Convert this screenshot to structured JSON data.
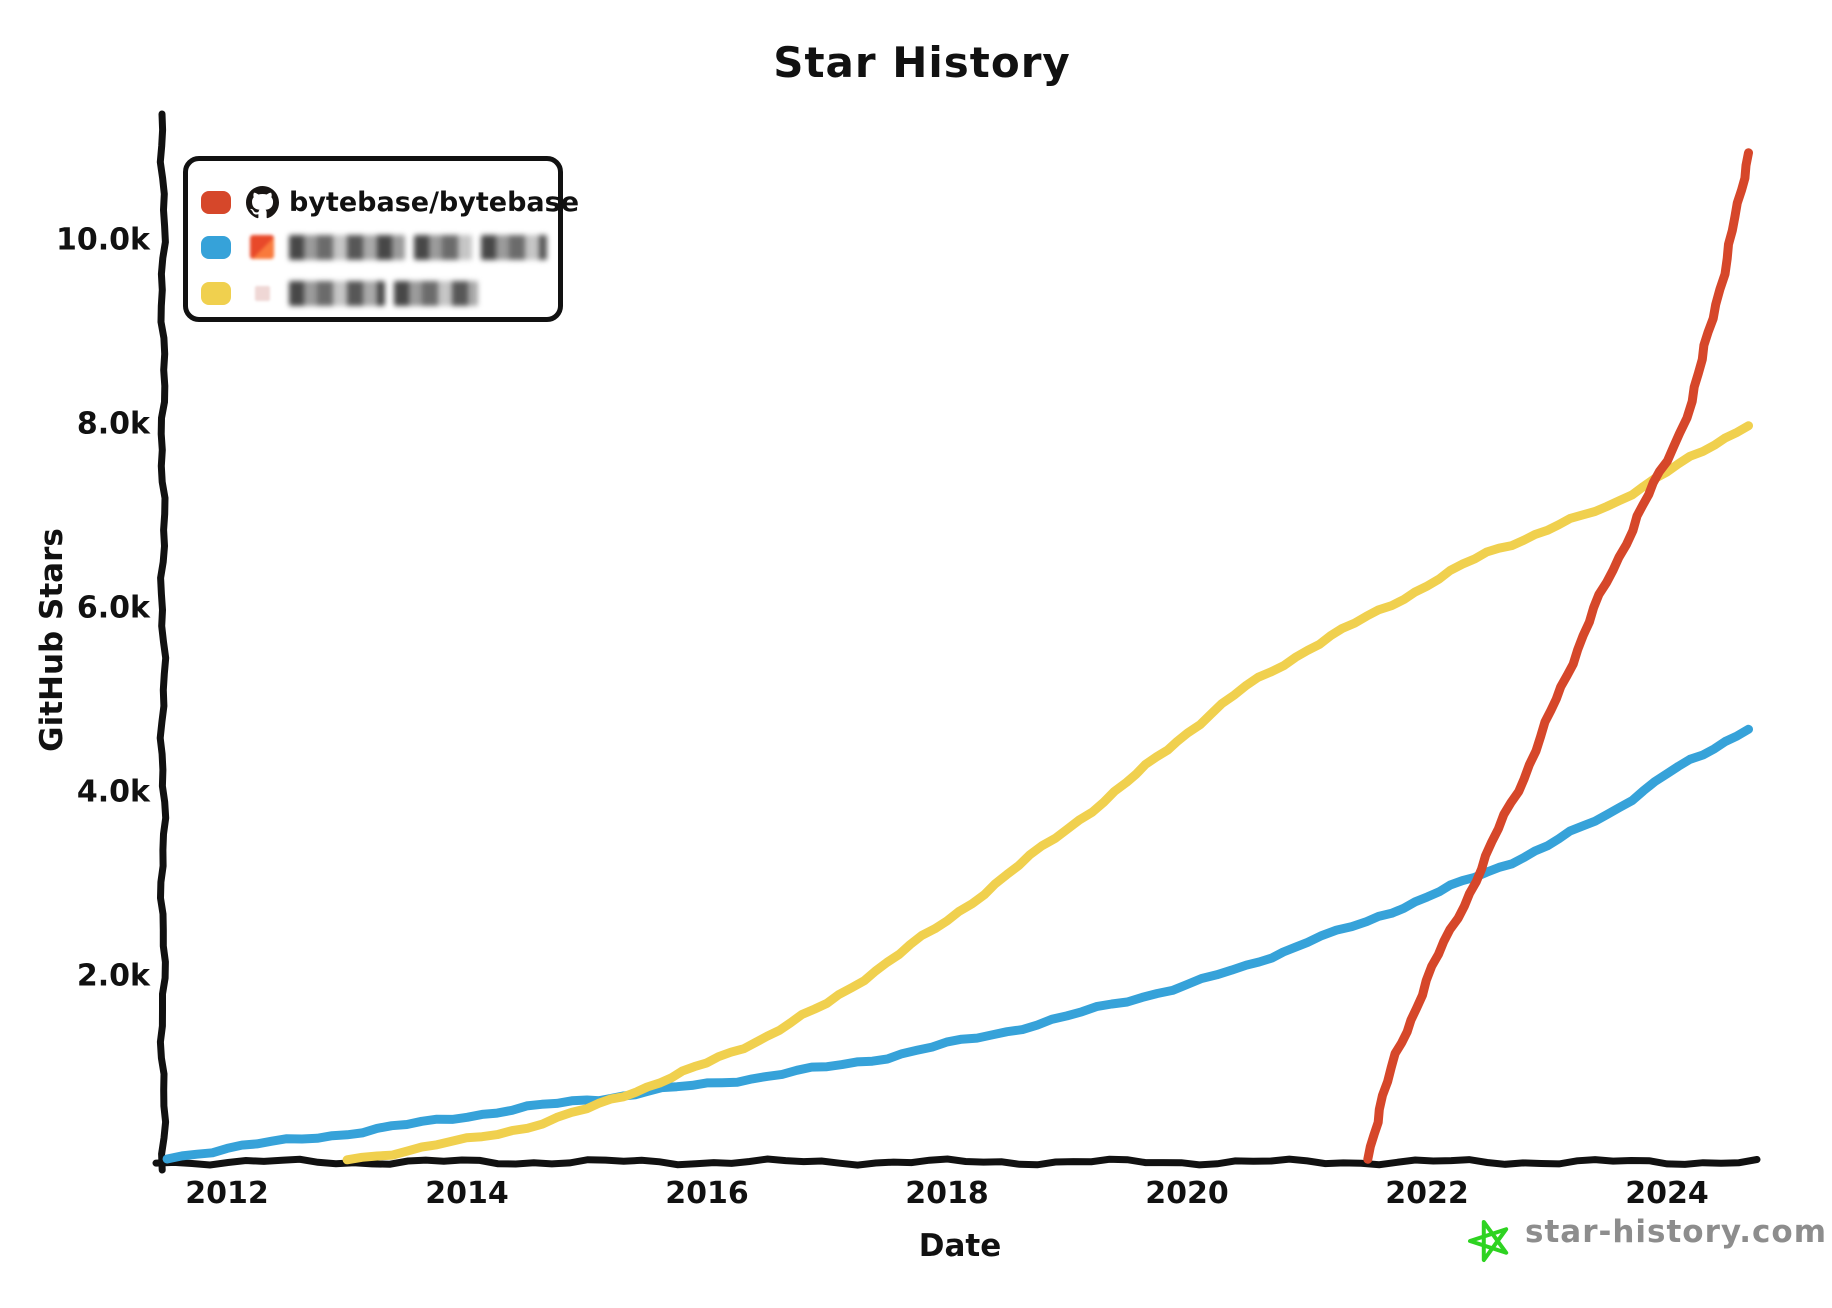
{
  "title": "Star History",
  "legend": {
    "items": [
      {
        "label": "bytebase/bytebase",
        "swatch_color": "#d6472a",
        "icon": "github-octocat-icon",
        "redacted": false
      },
      {
        "label": "",
        "swatch_color": "#36a2d9",
        "icon": "redacted-avatar-red",
        "redacted": true
      },
      {
        "label": "",
        "swatch_color": "#f0d04e",
        "icon": "redacted-avatar-pink",
        "redacted": true
      }
    ]
  },
  "watermark": {
    "text": "star-history.com",
    "text_color": "#8d8d8d",
    "star_color": "#2ed321"
  },
  "chart_data": {
    "type": "line",
    "title": "Star History",
    "xlabel": "Date",
    "ylabel": "GitHub Stars",
    "grid": false,
    "legend_position": "top-left",
    "x_axis": {
      "range": [
        2011.45,
        2024.85
      ],
      "ticks": [
        2012,
        2014,
        2016,
        2018,
        2020,
        2022,
        2024
      ],
      "tick_labels": [
        "2012",
        "2014",
        "2016",
        "2018",
        "2020",
        "2022",
        "2024"
      ]
    },
    "y_axis": {
      "range": [
        0,
        11400
      ],
      "ticks": [
        2000,
        4000,
        6000,
        8000,
        10000
      ],
      "tick_labels": [
        "2.0k",
        "4.0k",
        "6.0k",
        "8.0k",
        "10.0k"
      ]
    },
    "series": [
      {
        "name": "redacted-blue",
        "color": "#36a2d9",
        "points": [
          [
            2011.5,
            20
          ],
          [
            2012,
            130
          ],
          [
            2012.5,
            210
          ],
          [
            2013,
            290
          ],
          [
            2013.5,
            380
          ],
          [
            2014,
            480
          ],
          [
            2014.5,
            570
          ],
          [
            2015,
            650
          ],
          [
            2015.3,
            700
          ],
          [
            2015.5,
            740
          ],
          [
            2016,
            830
          ],
          [
            2016.5,
            910
          ],
          [
            2017,
            1010
          ],
          [
            2017.5,
            1120
          ],
          [
            2018,
            1260
          ],
          [
            2018.5,
            1400
          ],
          [
            2019,
            1560
          ],
          [
            2019.5,
            1730
          ],
          [
            2020,
            1910
          ],
          [
            2020.5,
            2100
          ],
          [
            2021,
            2380
          ],
          [
            2021.5,
            2580
          ],
          [
            2022,
            2870
          ],
          [
            2022.5,
            3120
          ],
          [
            2023,
            3420
          ],
          [
            2023.5,
            3750
          ],
          [
            2024,
            4200
          ],
          [
            2024.3,
            4400
          ],
          [
            2024.67,
            4700
          ]
        ]
      },
      {
        "name": "redacted-yellow",
        "color": "#f0d04e",
        "points": [
          [
            2013,
            0
          ],
          [
            2013.5,
            100
          ],
          [
            2014,
            220
          ],
          [
            2014.5,
            360
          ],
          [
            2015,
            550
          ],
          [
            2015.3,
            700
          ],
          [
            2015.5,
            800
          ],
          [
            2016,
            1050
          ],
          [
            2016.5,
            1350
          ],
          [
            2017,
            1700
          ],
          [
            2017.5,
            2150
          ],
          [
            2018,
            2600
          ],
          [
            2018.5,
            3100
          ],
          [
            2019,
            3600
          ],
          [
            2019.5,
            4100
          ],
          [
            2020,
            4650
          ],
          [
            2020.5,
            5150
          ],
          [
            2021,
            5550
          ],
          [
            2021.5,
            5900
          ],
          [
            2022,
            6250
          ],
          [
            2022.5,
            6600
          ],
          [
            2023,
            6850
          ],
          [
            2023.5,
            7100
          ],
          [
            2024,
            7480
          ],
          [
            2024.3,
            7700
          ],
          [
            2024.67,
            8000
          ]
        ]
      },
      {
        "name": "bytebase/bytebase",
        "color": "#d6472a",
        "points": [
          [
            2021.5,
            0
          ],
          [
            2021.6,
            550
          ],
          [
            2021.75,
            1150
          ],
          [
            2021.9,
            1650
          ],
          [
            2022.05,
            2100
          ],
          [
            2022.2,
            2500
          ],
          [
            2022.35,
            2900
          ],
          [
            2022.5,
            3300
          ],
          [
            2022.65,
            3750
          ],
          [
            2022.8,
            4150
          ],
          [
            2023,
            4750
          ],
          [
            2023.2,
            5400
          ],
          [
            2023.4,
            6000
          ],
          [
            2023.6,
            6550
          ],
          [
            2023.75,
            7000
          ],
          [
            2023.9,
            7350
          ],
          [
            2024,
            7600
          ],
          [
            2024.1,
            7900
          ],
          [
            2024.2,
            8250
          ],
          [
            2024.3,
            8700
          ],
          [
            2024.4,
            9300
          ],
          [
            2024.5,
            9800
          ],
          [
            2024.55,
            10100
          ],
          [
            2024.6,
            10400
          ],
          [
            2024.67,
            10950
          ]
        ]
      }
    ]
  }
}
